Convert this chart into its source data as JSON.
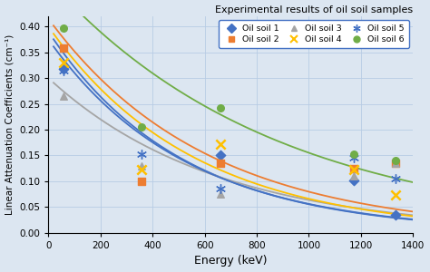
{
  "title": "Experimental results of oil soil samples",
  "xlabel": "Energy (keV)",
  "ylabel": "Linear Attenuation Coefficients (cm⁻¹)",
  "xlim": [
    0,
    1400
  ],
  "ylim": [
    0,
    0.42
  ],
  "xticks": [
    0,
    200,
    400,
    600,
    800,
    1000,
    1200,
    1400
  ],
  "yticks": [
    0,
    0.05,
    0.1,
    0.15,
    0.2,
    0.25,
    0.3,
    0.35,
    0.4
  ],
  "bg_color": "#dce6f1",
  "plot_bg_color": "#dce6f1",
  "grid_color": "#b8cce4",
  "series": [
    {
      "name": "Oil soil 1",
      "color": "#4472c4",
      "marker": "D",
      "scatter_x": [
        59,
        662,
        1173,
        1332
      ],
      "scatter_y": [
        0.317,
        0.15,
        0.101,
        0.035
      ],
      "curve_a": 0.39,
      "curve_b": 0.00195
    },
    {
      "name": "Oil soil 2",
      "color": "#ed7d31",
      "marker": "s",
      "scatter_x": [
        59,
        356,
        662,
        1173,
        1332
      ],
      "scatter_y": [
        0.358,
        0.1,
        0.135,
        0.125,
        0.135
      ],
      "curve_a": 0.415,
      "curve_b": 0.00165
    },
    {
      "name": "Oil soil 3",
      "color": "#a5a5a5",
      "marker": "^",
      "scatter_x": [
        59,
        356,
        662,
        1173,
        1332
      ],
      "scatter_y": [
        0.265,
        0.13,
        0.075,
        0.11,
        0.135
      ],
      "curve_a": 0.3,
      "curve_b": 0.00155
    },
    {
      "name": "Oil soil 4",
      "color": "#ffc000",
      "marker": "x",
      "scatter_x": [
        59,
        356,
        662,
        1173,
        1332
      ],
      "scatter_y": [
        0.33,
        0.123,
        0.172,
        0.122,
        0.073
      ],
      "curve_a": 0.4,
      "curve_b": 0.0018
    },
    {
      "name": "Oil soil 5",
      "color": "#4472c4",
      "marker": "x",
      "scatter_x": [
        59,
        356,
        662,
        1173,
        1332
      ],
      "scatter_y": [
        0.315,
        0.152,
        0.085,
        0.145,
        0.105
      ],
      "curve_a": 0.375,
      "curve_b": 0.0019
    },
    {
      "name": "Oil soil 6",
      "color": "#70ad47",
      "marker": "o",
      "scatter_x": [
        59,
        356,
        662,
        1173,
        1332
      ],
      "scatter_y": [
        0.397,
        0.206,
        0.242,
        0.153,
        0.14
      ],
      "curve_a": 0.49,
      "curve_b": 0.00115
    }
  ],
  "legend_order": [
    0,
    1,
    2,
    3,
    4,
    5
  ]
}
